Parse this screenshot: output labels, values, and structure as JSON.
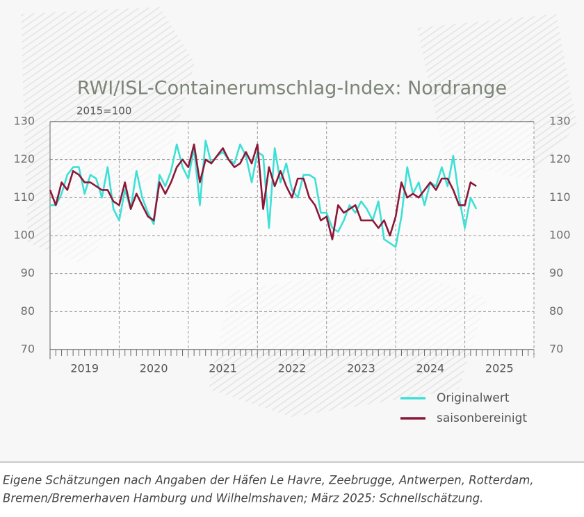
{
  "chart_data": {
    "type": "line",
    "title": "RWI/ISL-Containerumschlag-Index: Nordrange",
    "subtitle": "2015=100",
    "x": [
      2019.0,
      2019.083,
      2019.167,
      2019.25,
      2019.333,
      2019.417,
      2019.5,
      2019.583,
      2019.667,
      2019.75,
      2019.833,
      2019.917,
      2020.0,
      2020.083,
      2020.167,
      2020.25,
      2020.333,
      2020.417,
      2020.5,
      2020.583,
      2020.667,
      2020.75,
      2020.833,
      2020.917,
      2021.0,
      2021.083,
      2021.167,
      2021.25,
      2021.333,
      2021.417,
      2021.5,
      2021.583,
      2021.667,
      2021.75,
      2021.833,
      2021.917,
      2022.0,
      2022.083,
      2022.167,
      2022.25,
      2022.333,
      2022.417,
      2022.5,
      2022.583,
      2022.667,
      2022.75,
      2022.833,
      2022.917,
      2023.0,
      2023.083,
      2023.167,
      2023.25,
      2023.333,
      2023.417,
      2023.5,
      2023.583,
      2023.667,
      2023.75,
      2023.833,
      2023.917,
      2024.0,
      2024.083,
      2024.167,
      2024.25,
      2024.333,
      2024.417,
      2024.5,
      2024.583,
      2024.667,
      2024.75,
      2024.833,
      2024.917,
      2025.0,
      2025.083,
      2025.167
    ],
    "series": [
      {
        "name": "Originalwert",
        "color": "#3ee0d6",
        "values": [
          108,
          108,
          111,
          116,
          118,
          118,
          111,
          116,
          115,
          110,
          118,
          107,
          104,
          112,
          107,
          117,
          110,
          106,
          103,
          116,
          113,
          117,
          124,
          118,
          115,
          123,
          108,
          125,
          119,
          121,
          122,
          120,
          119,
          124,
          121,
          114,
          122,
          121,
          102,
          123,
          114,
          119,
          112,
          110,
          116,
          116,
          115,
          106,
          106,
          102,
          101,
          104,
          108,
          106,
          109,
          107,
          104,
          109,
          99,
          98,
          97,
          105,
          118,
          111,
          114,
          108,
          114,
          113,
          118,
          113,
          121,
          110,
          102,
          110,
          107
        ]
      },
      {
        "name": "saisonbereinigt",
        "color": "#8c1838",
        "values": [
          112,
          108,
          114,
          112,
          117,
          116,
          114,
          114,
          113,
          112,
          112,
          109,
          108,
          114,
          107,
          111,
          108,
          105,
          104,
          114,
          111,
          114,
          118,
          120,
          118,
          124,
          114,
          120,
          119,
          121,
          123,
          120,
          118,
          119,
          122,
          119,
          124,
          107,
          118,
          113,
          117,
          113,
          110,
          115,
          115,
          110,
          108,
          104,
          105,
          99,
          108,
          106,
          107,
          108,
          104,
          104,
          104,
          102,
          104,
          100,
          105,
          114,
          110,
          111,
          110,
          112,
          114,
          112,
          115,
          115,
          112,
          108,
          108,
          114,
          113
        ]
      }
    ],
    "xlim": [
      2019,
      2026
    ],
    "xticks": [
      2019,
      2020,
      2021,
      2022,
      2023,
      2024,
      2025
    ],
    "ylim": [
      70,
      130
    ],
    "yticks": [
      70,
      80,
      90,
      100,
      110,
      120,
      130
    ],
    "grid": true,
    "legend": "lower right",
    "note": [
      "Eigene Schätzungen nach Angaben der Häfen Le Havre, Zeebrugge, Antwerpen, Rotterdam,",
      "Bremen/Bremerhaven Hamburg und Wilhelmshaven; März 2025: Schnellschätzung."
    ]
  }
}
